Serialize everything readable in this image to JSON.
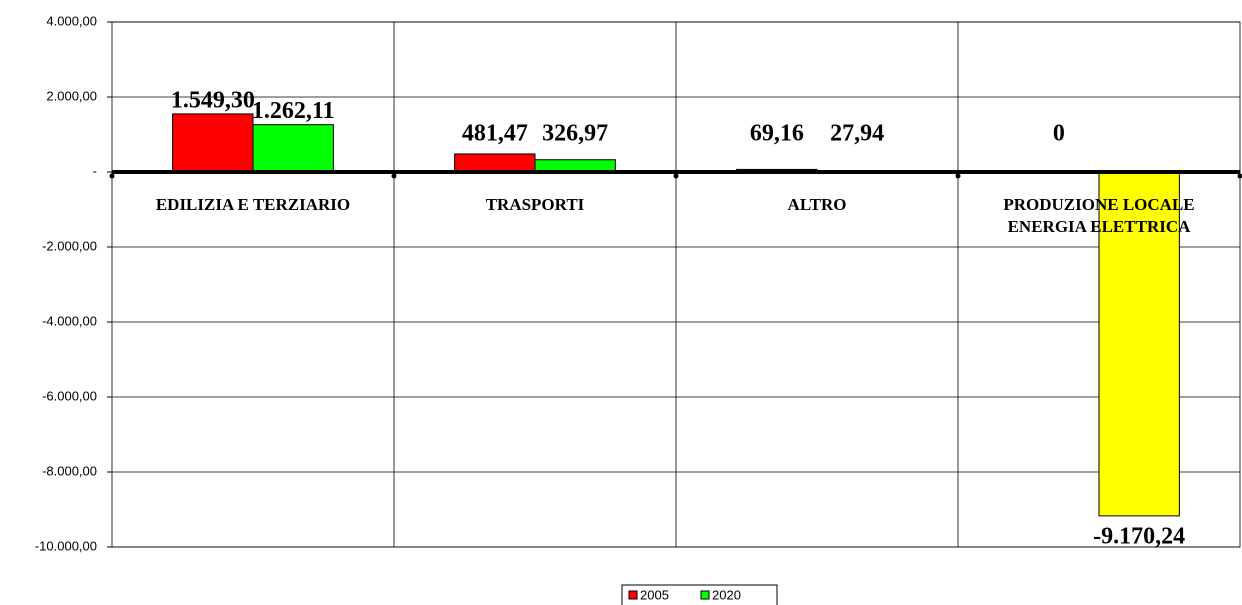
{
  "chart_data": {
    "type": "bar",
    "categories": [
      "EDILIZIA E TERZIARIO",
      "TRASPORTI",
      "ALTRO",
      "PRODUZIONE LOCALE ENERGIA ELETTRICA"
    ],
    "series": [
      {
        "name": "2005",
        "color": "#ff0000",
        "values": [
          1549.3,
          481.47,
          69.16,
          0
        ],
        "value_labels": [
          "1.549,30",
          "481,47",
          "69,16",
          "0"
        ]
      },
      {
        "name": "2020",
        "color": "#00ff00",
        "colors": [
          "#00ff00",
          "#00ff00",
          "#00ff00",
          "#ffff00"
        ],
        "values": [
          1262.11,
          326.97,
          27.94,
          -9170.24
        ],
        "value_labels": [
          "1.262,11",
          "326,97",
          "27,94",
          "-9.170,24"
        ]
      }
    ],
    "ylim": [
      -10000,
      4000
    ],
    "yticks": [
      {
        "value": -10000,
        "label": "-10.000,00"
      },
      {
        "value": -8000,
        "label": "-8.000,00"
      },
      {
        "value": -6000,
        "label": "-6.000,00"
      },
      {
        "value": -4000,
        "label": "-4.000,00"
      },
      {
        "value": -2000,
        "label": "-2.000,00"
      },
      {
        "value": 0,
        "label": "-"
      },
      {
        "value": 2000,
        "label": "2.000,00"
      },
      {
        "value": 4000,
        "label": "4.000,00"
      }
    ],
    "grid": true,
    "legend": "bottom"
  }
}
